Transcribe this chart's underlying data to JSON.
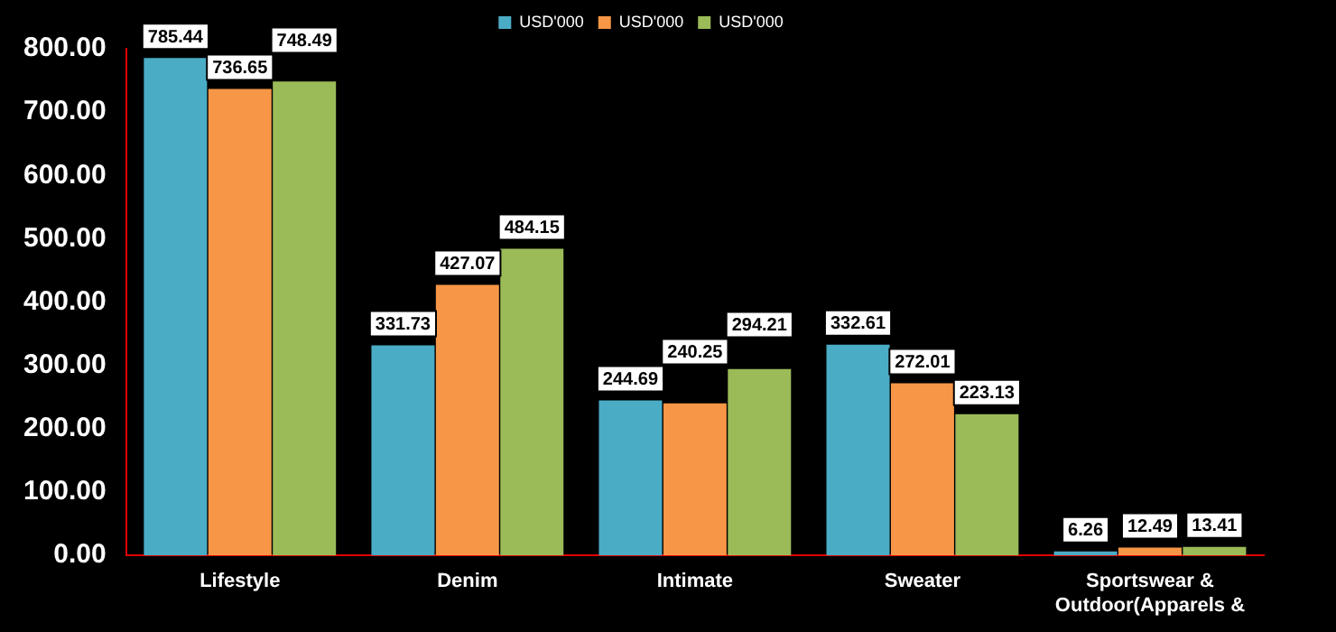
{
  "chart_data": {
    "type": "bar",
    "categories": [
      "Lifestyle",
      "Denim",
      "Intimate",
      "Sweater",
      "Sportswear & Outdoor(Apparels &"
    ],
    "series": [
      {
        "name": "USD'000",
        "color": "#4bacc6",
        "values": [
          785.44,
          331.73,
          244.69,
          332.61,
          6.26
        ]
      },
      {
        "name": "USD'000",
        "color": "#f79646",
        "values": [
          736.65,
          427.07,
          240.25,
          272.01,
          12.49
        ]
      },
      {
        "name": "USD'000",
        "color": "#9bbb59",
        "values": [
          748.49,
          484.15,
          294.21,
          223.13,
          13.41
        ]
      }
    ],
    "ylim": [
      0,
      800
    ],
    "yticks": [
      {
        "value": 0,
        "label": "0.00"
      },
      {
        "value": 100,
        "label": "100.00"
      },
      {
        "value": 200,
        "label": "200.00"
      },
      {
        "value": 300,
        "label": "300.00"
      },
      {
        "value": 400,
        "label": "400.00"
      },
      {
        "value": 500,
        "label": "500.00"
      },
      {
        "value": 600,
        "label": "600.00"
      },
      {
        "value": 700,
        "label": "700.00"
      },
      {
        "value": 800,
        "label": "800.00"
      }
    ],
    "grid": false,
    "legend": "top",
    "data_labels": true
  }
}
